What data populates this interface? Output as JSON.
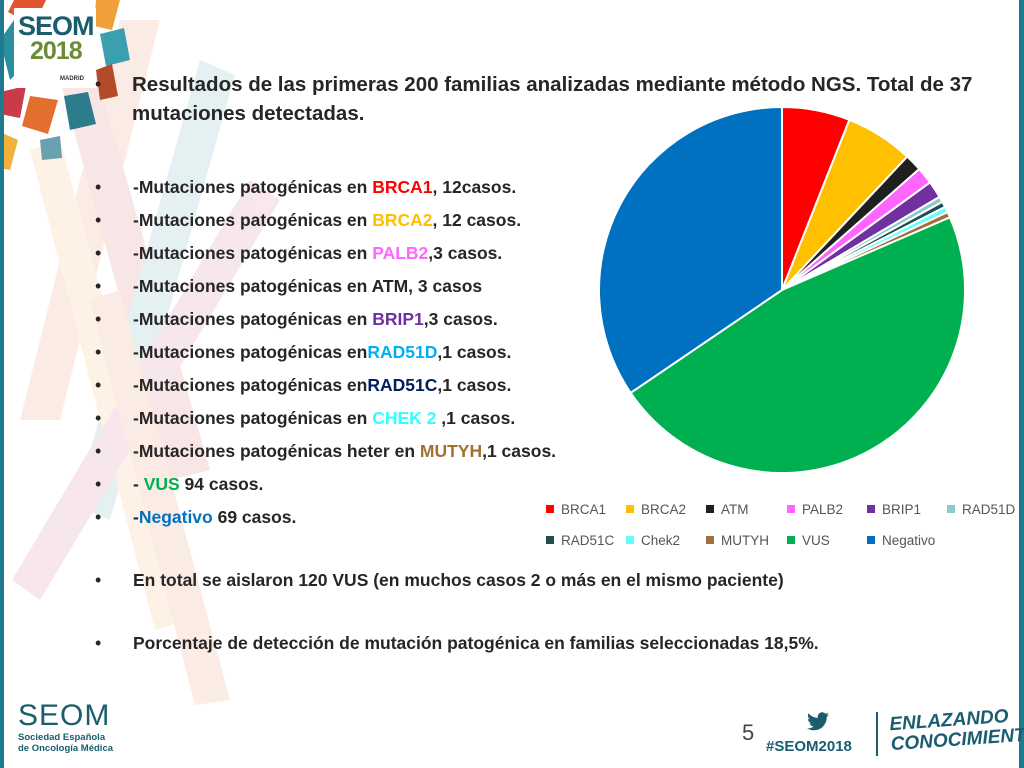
{
  "branding": {
    "logo_line1": "SEOM",
    "logo_line2": "2018",
    "logo_line3": "MADRID",
    "footer_name": "SEOM",
    "footer_sub1": "Sociedad Española",
    "footer_sub2": "de Oncología Médica",
    "hashtag": "#SEOM2018",
    "tagline1": "ENLAZANDO",
    "tagline2": "CONOCIMIENTO"
  },
  "slide": {
    "bullet_char": "•",
    "title": "Resultados de las primeras  200 familias analizadas mediante método NGS. Total de 37 mutaciones detectadas.",
    "page_number": "5",
    "items": [
      {
        "pre": "-Mutaciones patogénicas en ",
        "hl": "BRCA1",
        "post": ", 12casos.",
        "color": "#ff0000"
      },
      {
        "pre": "-Mutaciones patogénicas en ",
        "hl": "BRCA2",
        "post": ", 12 casos.",
        "color": "#ffc000"
      },
      {
        "pre": "-Mutaciones patogénicas en ",
        "hl": "PALB2",
        "post": ",3 casos.",
        "color": "#ff66ff"
      },
      {
        "pre": "-Mutaciones patogénicas en ATM, 3 casos",
        "hl": "",
        "post": "",
        "color": "#262626"
      },
      {
        "pre": "-Mutaciones patogénicas en ",
        "hl": "BRIP1",
        "post": ",3 casos.",
        "color": "#7030a0"
      },
      {
        "pre": "-Mutaciones patogénicas en",
        "hl": "RAD51D",
        "post": ",1 casos.",
        "color": "#00b0f0"
      },
      {
        "pre": "-Mutaciones patogénicas en",
        "hl": "RAD51C",
        "post": ",1 casos.",
        "color": "#002060"
      },
      {
        "pre": "-Mutaciones patogénicas en ",
        "hl": "CHEK 2 ",
        "post": ",1 casos.",
        "color": "#33ffff"
      },
      {
        "pre": "-Mutaciones patogénicas heter en ",
        "hl": "MUTYH",
        "post": ",1 casos.",
        "color": "#a5702c"
      },
      {
        "pre": "- ",
        "hl": "VUS",
        "post": " 94 casos.",
        "color": "#00b050"
      },
      {
        "pre": "-",
        "hl": "Negativo",
        "post": " 69 casos.",
        "color": "#0070c0"
      }
    ],
    "summary1": "En total se aislaron 120 VUS (en muchos casos 2 o más en el mismo paciente)",
    "summary2": "Porcentaje de detección de mutación  patogénica en familias seleccionadas 18,5%."
  },
  "chart_data": {
    "type": "pie",
    "categories": [
      "BRCA1",
      "BRCA2",
      "ATM",
      "PALB2",
      "BRIP1",
      "RAD51D",
      "RAD51C",
      "Chek2",
      "MUTYH",
      "VUS",
      "Negativo"
    ],
    "values": [
      12,
      12,
      3,
      3,
      3,
      1,
      1,
      1,
      1,
      94,
      69
    ],
    "colors": [
      "#ff0000",
      "#ffc000",
      "#1f1f1f",
      "#ff66ff",
      "#7030a0",
      "#8ec9c9",
      "#1f4e4e",
      "#66ffff",
      "#a0703c",
      "#00b050",
      "#0070c0"
    ],
    "legend_position": "bottom",
    "start": "top, clockwise"
  }
}
